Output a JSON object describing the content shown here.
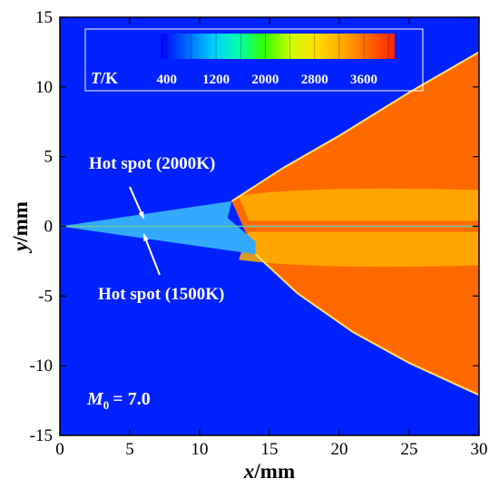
{
  "chart_data": {
    "type": "heatmap",
    "xlabel": {
      "main": "x",
      "unit": "/mm"
    },
    "ylabel": {
      "main": "y",
      "unit": "/mm"
    },
    "xlim": [
      0,
      30
    ],
    "ylim": [
      -15,
      15
    ],
    "xticks": [
      0,
      5,
      10,
      15,
      20,
      25,
      30
    ],
    "yticks": [
      -15,
      -10,
      -5,
      0,
      5,
      10,
      15
    ],
    "colorbar": {
      "title_var": "T",
      "title_unit": "/K",
      "ticks": [
        "400",
        "1200",
        "2000",
        "2800",
        "3600"
      ],
      "tick_values": [
        400,
        1200,
        2000,
        2800,
        3600
      ],
      "range": [
        300,
        4100
      ],
      "colors": [
        "#0000ff",
        "#0066ff",
        "#00ccff",
        "#00ffaa",
        "#33ff00",
        "#ccff00",
        "#ffdd00",
        "#ffaa00",
        "#ff6600",
        "#ff2200"
      ]
    },
    "annotations": [
      {
        "text": "Hot spot (2000K)",
        "x": 6.0,
        "y": 0.3
      },
      {
        "text": "Hot spot (1500K)",
        "x": 6.0,
        "y": -0.3
      }
    ],
    "mach": {
      "var": "M",
      "sub": "0",
      "value": "= 7.0"
    },
    "field": {
      "background_color": "#0022ff",
      "wedge_color": "#33aaff",
      "hot_color": "#ff6a00",
      "warm_color": "#ffb000",
      "shock_upper": [
        [
          0,
          0
        ],
        [
          12.3,
          1.8
        ],
        [
          16,
          4.2
        ],
        [
          20,
          6.5
        ],
        [
          25,
          9.6
        ],
        [
          30,
          12.5
        ]
      ],
      "shock_lower": [
        [
          0,
          0
        ],
        [
          14.0,
          -2.0
        ],
        [
          17,
          -4.8
        ],
        [
          21,
          -7.6
        ],
        [
          25,
          -9.8
        ],
        [
          30,
          -12.1
        ]
      ]
    }
  }
}
